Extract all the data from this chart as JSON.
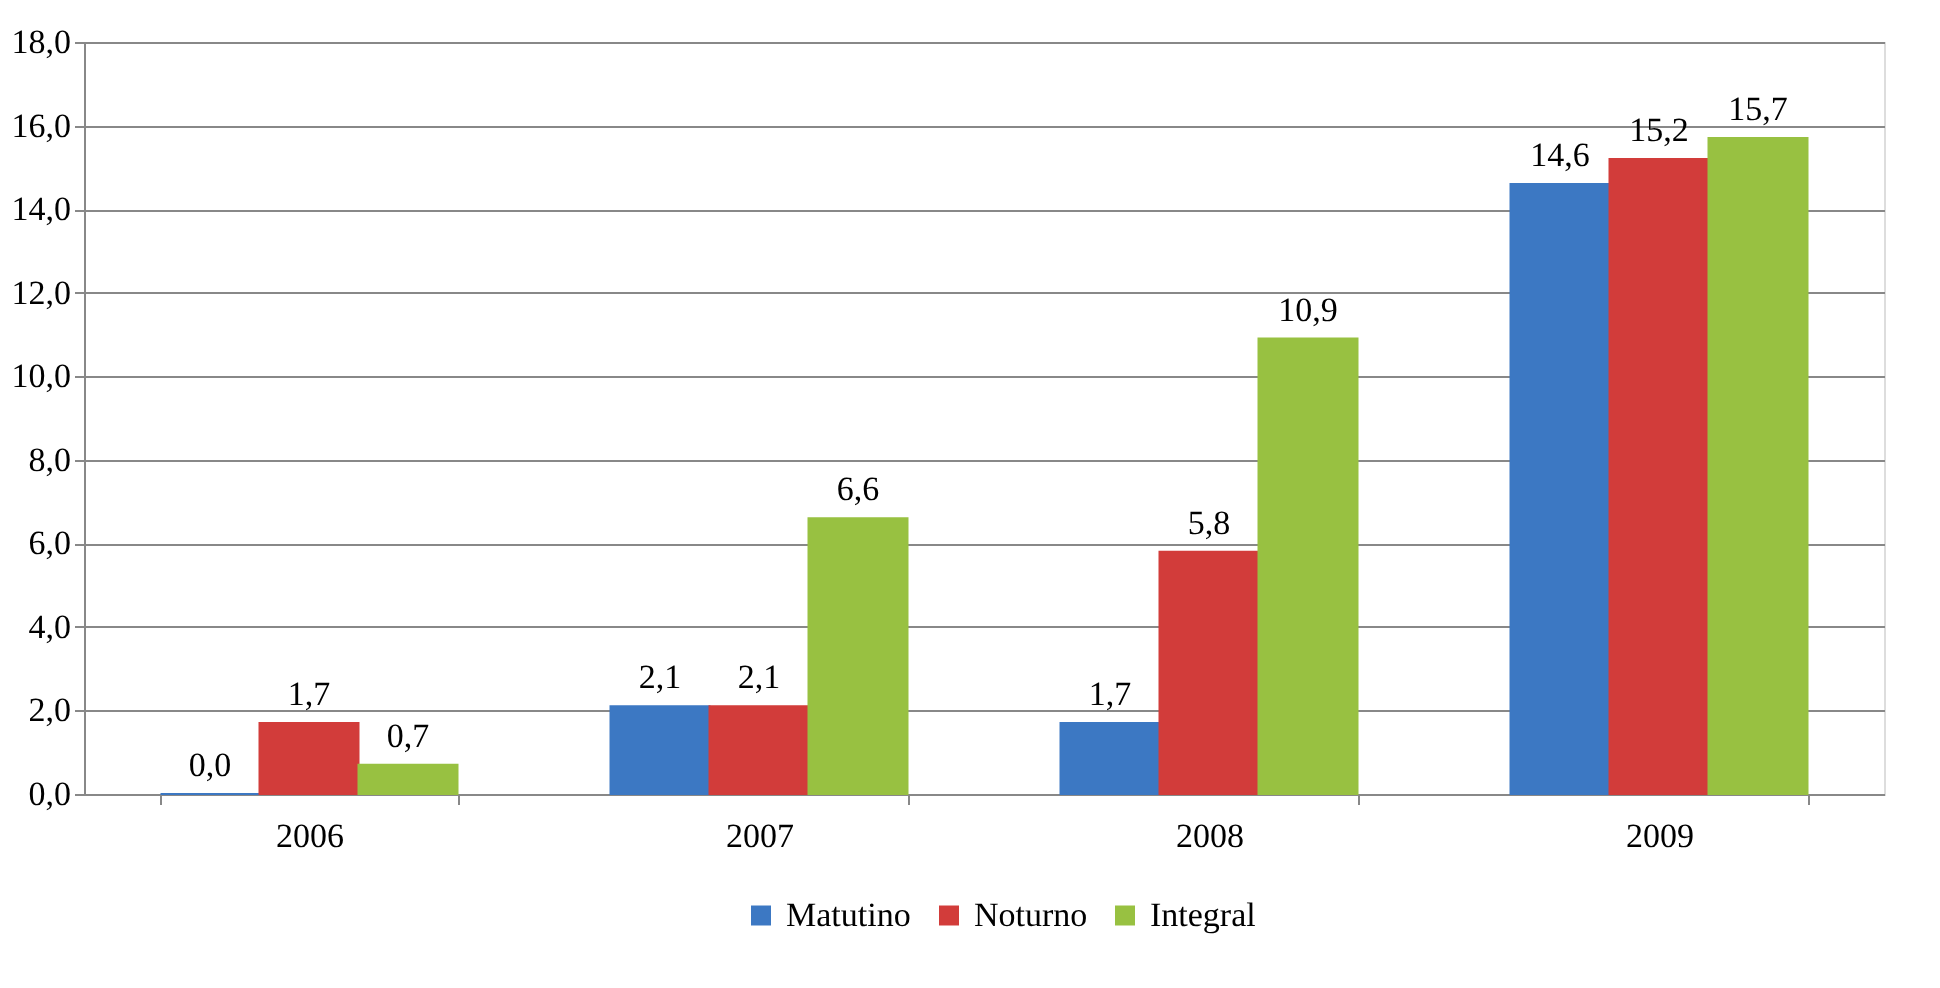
{
  "chart_data": {
    "type": "bar",
    "categories": [
      "2006",
      "2007",
      "2008",
      "2009"
    ],
    "series": [
      {
        "name": "Matutino",
        "color": "#3c78c3",
        "values": [
          0.0,
          2.1,
          1.7,
          14.6
        ],
        "value_labels": [
          "0,0",
          "2,1",
          "1,7",
          "14,6"
        ]
      },
      {
        "name": "Noturno",
        "color": "#d23c3a",
        "values": [
          1.7,
          2.1,
          5.8,
          15.2
        ],
        "value_labels": [
          "1,7",
          "2,1",
          "5,8",
          "15,2"
        ]
      },
      {
        "name": "Integral",
        "color": "#98c141",
        "values": [
          0.7,
          6.6,
          10.9,
          15.7
        ],
        "value_labels": [
          "0,7",
          "6,6",
          "10,9",
          "15,7"
        ]
      }
    ],
    "ylim": [
      0,
      18
    ],
    "yticks": [
      {
        "value": 0,
        "label": "0,0"
      },
      {
        "value": 2,
        "label": "2,0"
      },
      {
        "value": 4,
        "label": "4,0"
      },
      {
        "value": 6,
        "label": "6,0"
      },
      {
        "value": 8,
        "label": "8,0"
      },
      {
        "value": 10,
        "label": "10,0"
      },
      {
        "value": 12,
        "label": "12,0"
      },
      {
        "value": 14,
        "label": "14,0"
      },
      {
        "value": 16,
        "label": "16,0"
      },
      {
        "value": 18,
        "label": "18,0"
      }
    ],
    "grid": "y",
    "legend": "bottom"
  }
}
